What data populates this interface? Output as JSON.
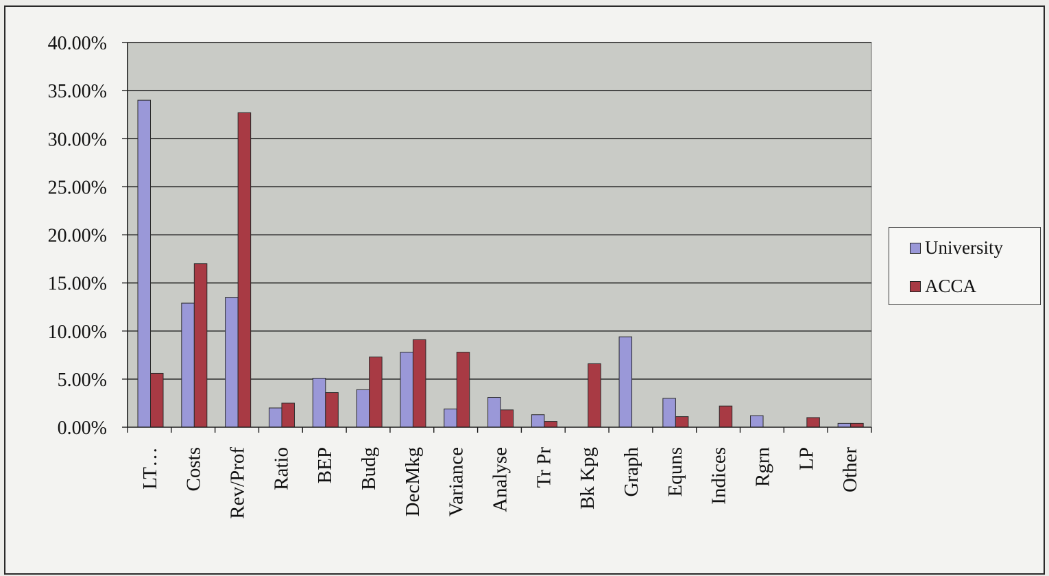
{
  "chart_data": {
    "type": "bar",
    "categories": [
      "LT…",
      "Costs",
      "Rev/Prof",
      "Ratio",
      "BEP",
      "Budg",
      "DecMkg",
      "Variance",
      "Analyse",
      "Tr Pr",
      "Bk Kpg",
      "Graph",
      "Equns",
      "Indices",
      "Rgrn",
      "LP",
      "Other"
    ],
    "series": [
      {
        "name": "University",
        "color": "#9a98d8",
        "values": [
          34.0,
          12.9,
          13.5,
          2.0,
          5.1,
          3.9,
          7.8,
          1.9,
          3.1,
          1.3,
          0.0,
          9.4,
          3.0,
          0.0,
          1.2,
          0.0,
          0.4
        ]
      },
      {
        "name": "ACCA",
        "color": "#a83a44",
        "values": [
          5.6,
          17.0,
          32.7,
          2.5,
          3.6,
          7.3,
          9.1,
          7.8,
          1.8,
          0.6,
          6.6,
          0.0,
          1.1,
          2.2,
          0.0,
          1.0,
          0.4
        ]
      }
    ],
    "ytick_labels": [
      "0.00%",
      "5.00%",
      "10.00%",
      "15.00%",
      "20.00%",
      "25.00%",
      "30.00%",
      "35.00%",
      "40.00%"
    ],
    "ylim": [
      0,
      40
    ],
    "grid": true,
    "legend_position": "right",
    "plot_background": "#c9cbc6"
  }
}
